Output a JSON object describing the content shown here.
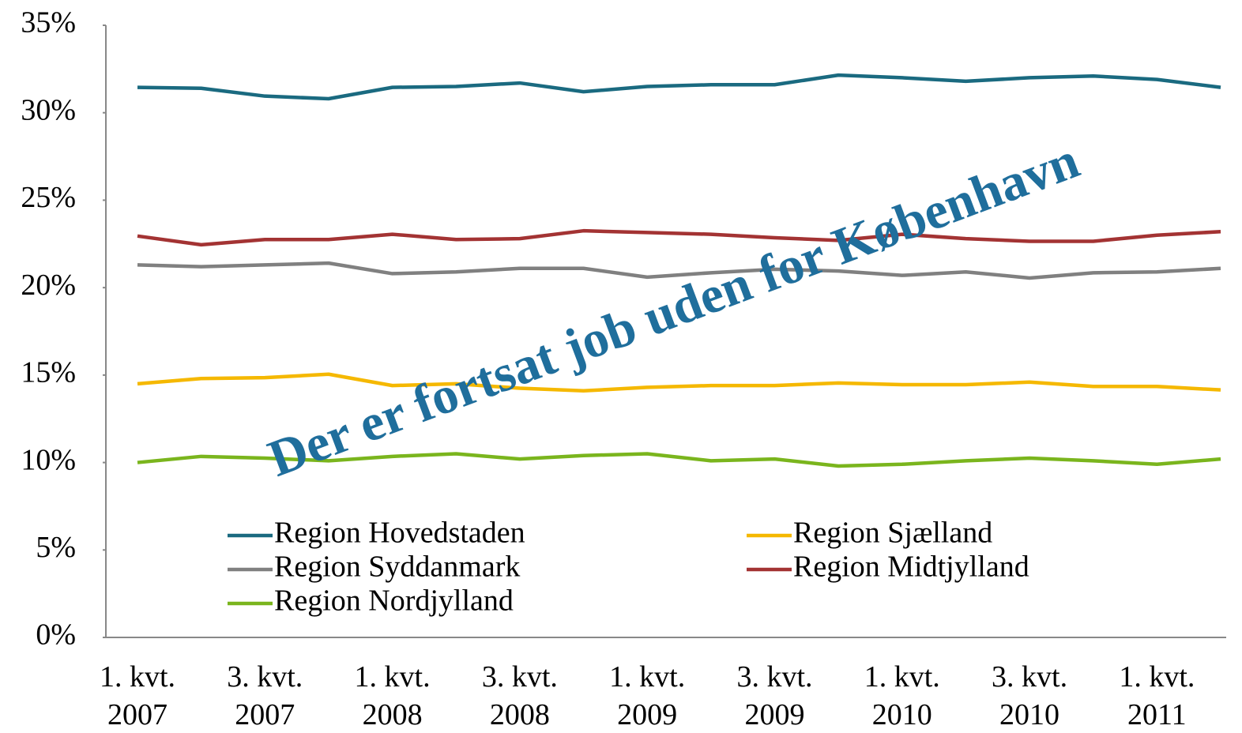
{
  "chart_data": {
    "type": "line",
    "annotation": "Der er fortsat job uden for København",
    "categories": [
      "1. kvt.\n2007",
      null,
      "3. kvt.\n2007",
      null,
      "1. kvt.\n2008",
      null,
      "3. kvt.\n2008",
      null,
      "1. kvt.\n2009",
      null,
      "3. kvt.\n2009",
      null,
      "1. kvt.\n2010",
      null,
      "3. kvt.\n2010",
      null,
      "1. kvt.\n2011",
      null
    ],
    "series": [
      {
        "name": "Region Hovedstaden",
        "color": "#1a6a80",
        "values": [
          31.45,
          31.4,
          30.95,
          30.8,
          31.45,
          31.5,
          31.7,
          31.2,
          31.5,
          31.6,
          31.6,
          32.15,
          32.0,
          31.8,
          32.0,
          32.1,
          31.9,
          31.45
        ]
      },
      {
        "name": "Region Sjælland",
        "color": "#f5b800",
        "values": [
          14.5,
          14.8,
          14.85,
          15.05,
          14.4,
          14.5,
          14.25,
          14.1,
          14.3,
          14.4,
          14.4,
          14.55,
          14.45,
          14.45,
          14.6,
          14.35,
          14.35,
          14.15
        ]
      },
      {
        "name": "Region Syddanmark",
        "color": "#808080",
        "values": [
          21.3,
          21.2,
          21.3,
          21.4,
          20.8,
          20.9,
          21.1,
          21.1,
          20.6,
          20.85,
          21.05,
          20.95,
          20.7,
          20.9,
          20.55,
          20.85,
          20.9,
          21.1
        ]
      },
      {
        "name": "Region Midtjylland",
        "color": "#a33333",
        "values": [
          22.95,
          22.45,
          22.75,
          22.75,
          23.05,
          22.75,
          22.8,
          23.25,
          23.15,
          23.05,
          22.85,
          22.7,
          23.05,
          22.8,
          22.65,
          22.65,
          23.0,
          23.2
        ]
      },
      {
        "name": "Region Nordjylland",
        "color": "#7ab51d",
        "values": [
          10.0,
          10.35,
          10.25,
          10.1,
          10.35,
          10.5,
          10.2,
          10.4,
          10.5,
          10.1,
          10.2,
          9.8,
          9.9,
          10.1,
          10.25,
          10.1,
          9.9,
          10.2
        ]
      }
    ],
    "ylim": [
      0,
      35
    ],
    "yticks": [
      {
        "value": 0,
        "label": "0%"
      },
      {
        "value": 5,
        "label": "5%"
      },
      {
        "value": 10,
        "label": "10%"
      },
      {
        "value": 15,
        "label": "15%"
      },
      {
        "value": 20,
        "label": "20%"
      },
      {
        "value": 25,
        "label": "25%"
      },
      {
        "value": 30,
        "label": "30%"
      },
      {
        "value": 35,
        "label": "35%"
      }
    ],
    "grid": false,
    "legend": "bottom"
  }
}
